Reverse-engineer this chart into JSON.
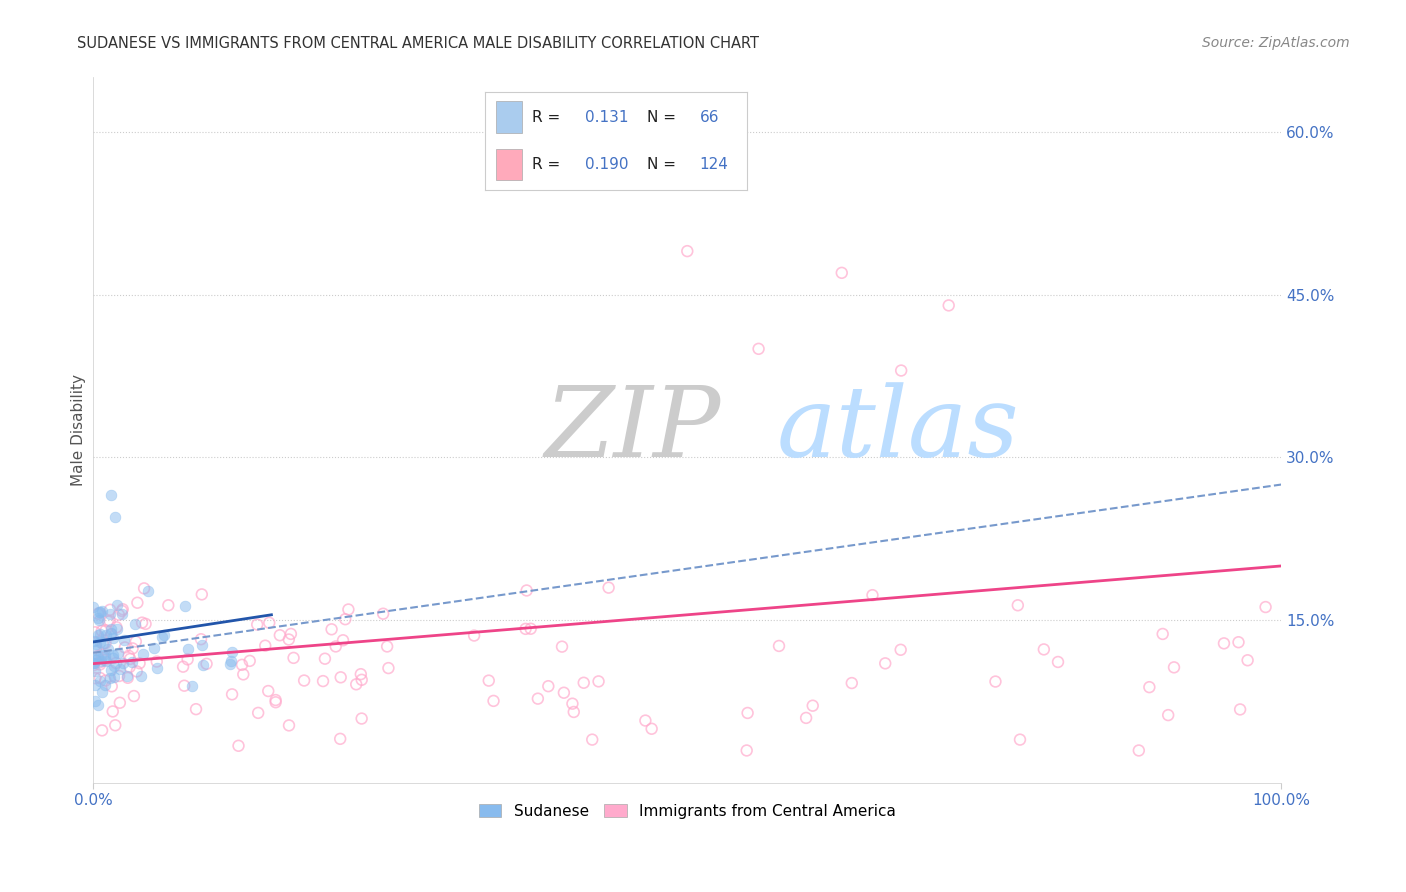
{
  "title": "SUDANESE VS IMMIGRANTS FROM CENTRAL AMERICA MALE DISABILITY CORRELATION CHART",
  "source": "Source: ZipAtlas.com",
  "ylabel": "Male Disability",
  "xlim": [
    0,
    1.0
  ],
  "ylim": [
    0,
    0.65
  ],
  "xtick_vals": [
    0.0,
    1.0
  ],
  "xtick_labels": [
    "0.0%",
    "100.0%"
  ],
  "ytick_labels_right": [
    "60.0%",
    "45.0%",
    "30.0%",
    "15.0%"
  ],
  "ytick_vals_right": [
    0.6,
    0.45,
    0.3,
    0.15
  ],
  "blue_legend_color": "#aaccee",
  "pink_legend_color": "#ffaabb",
  "blue_scatter_color": "#88bbee",
  "pink_scatter_color": "#ffaacc",
  "trend_blue_color": "#2255aa",
  "trend_pink_color": "#ee4488",
  "trend_dashed_color": "#7799cc",
  "grid_color": "#cccccc",
  "title_color": "#333333",
  "source_color": "#888888",
  "axis_label_color": "#555555",
  "tick_color": "#4472c4",
  "watermark_ZIP_color": "#cccccc",
  "watermark_atlas_color": "#bbddff",
  "legend_border_color": "#cccccc"
}
